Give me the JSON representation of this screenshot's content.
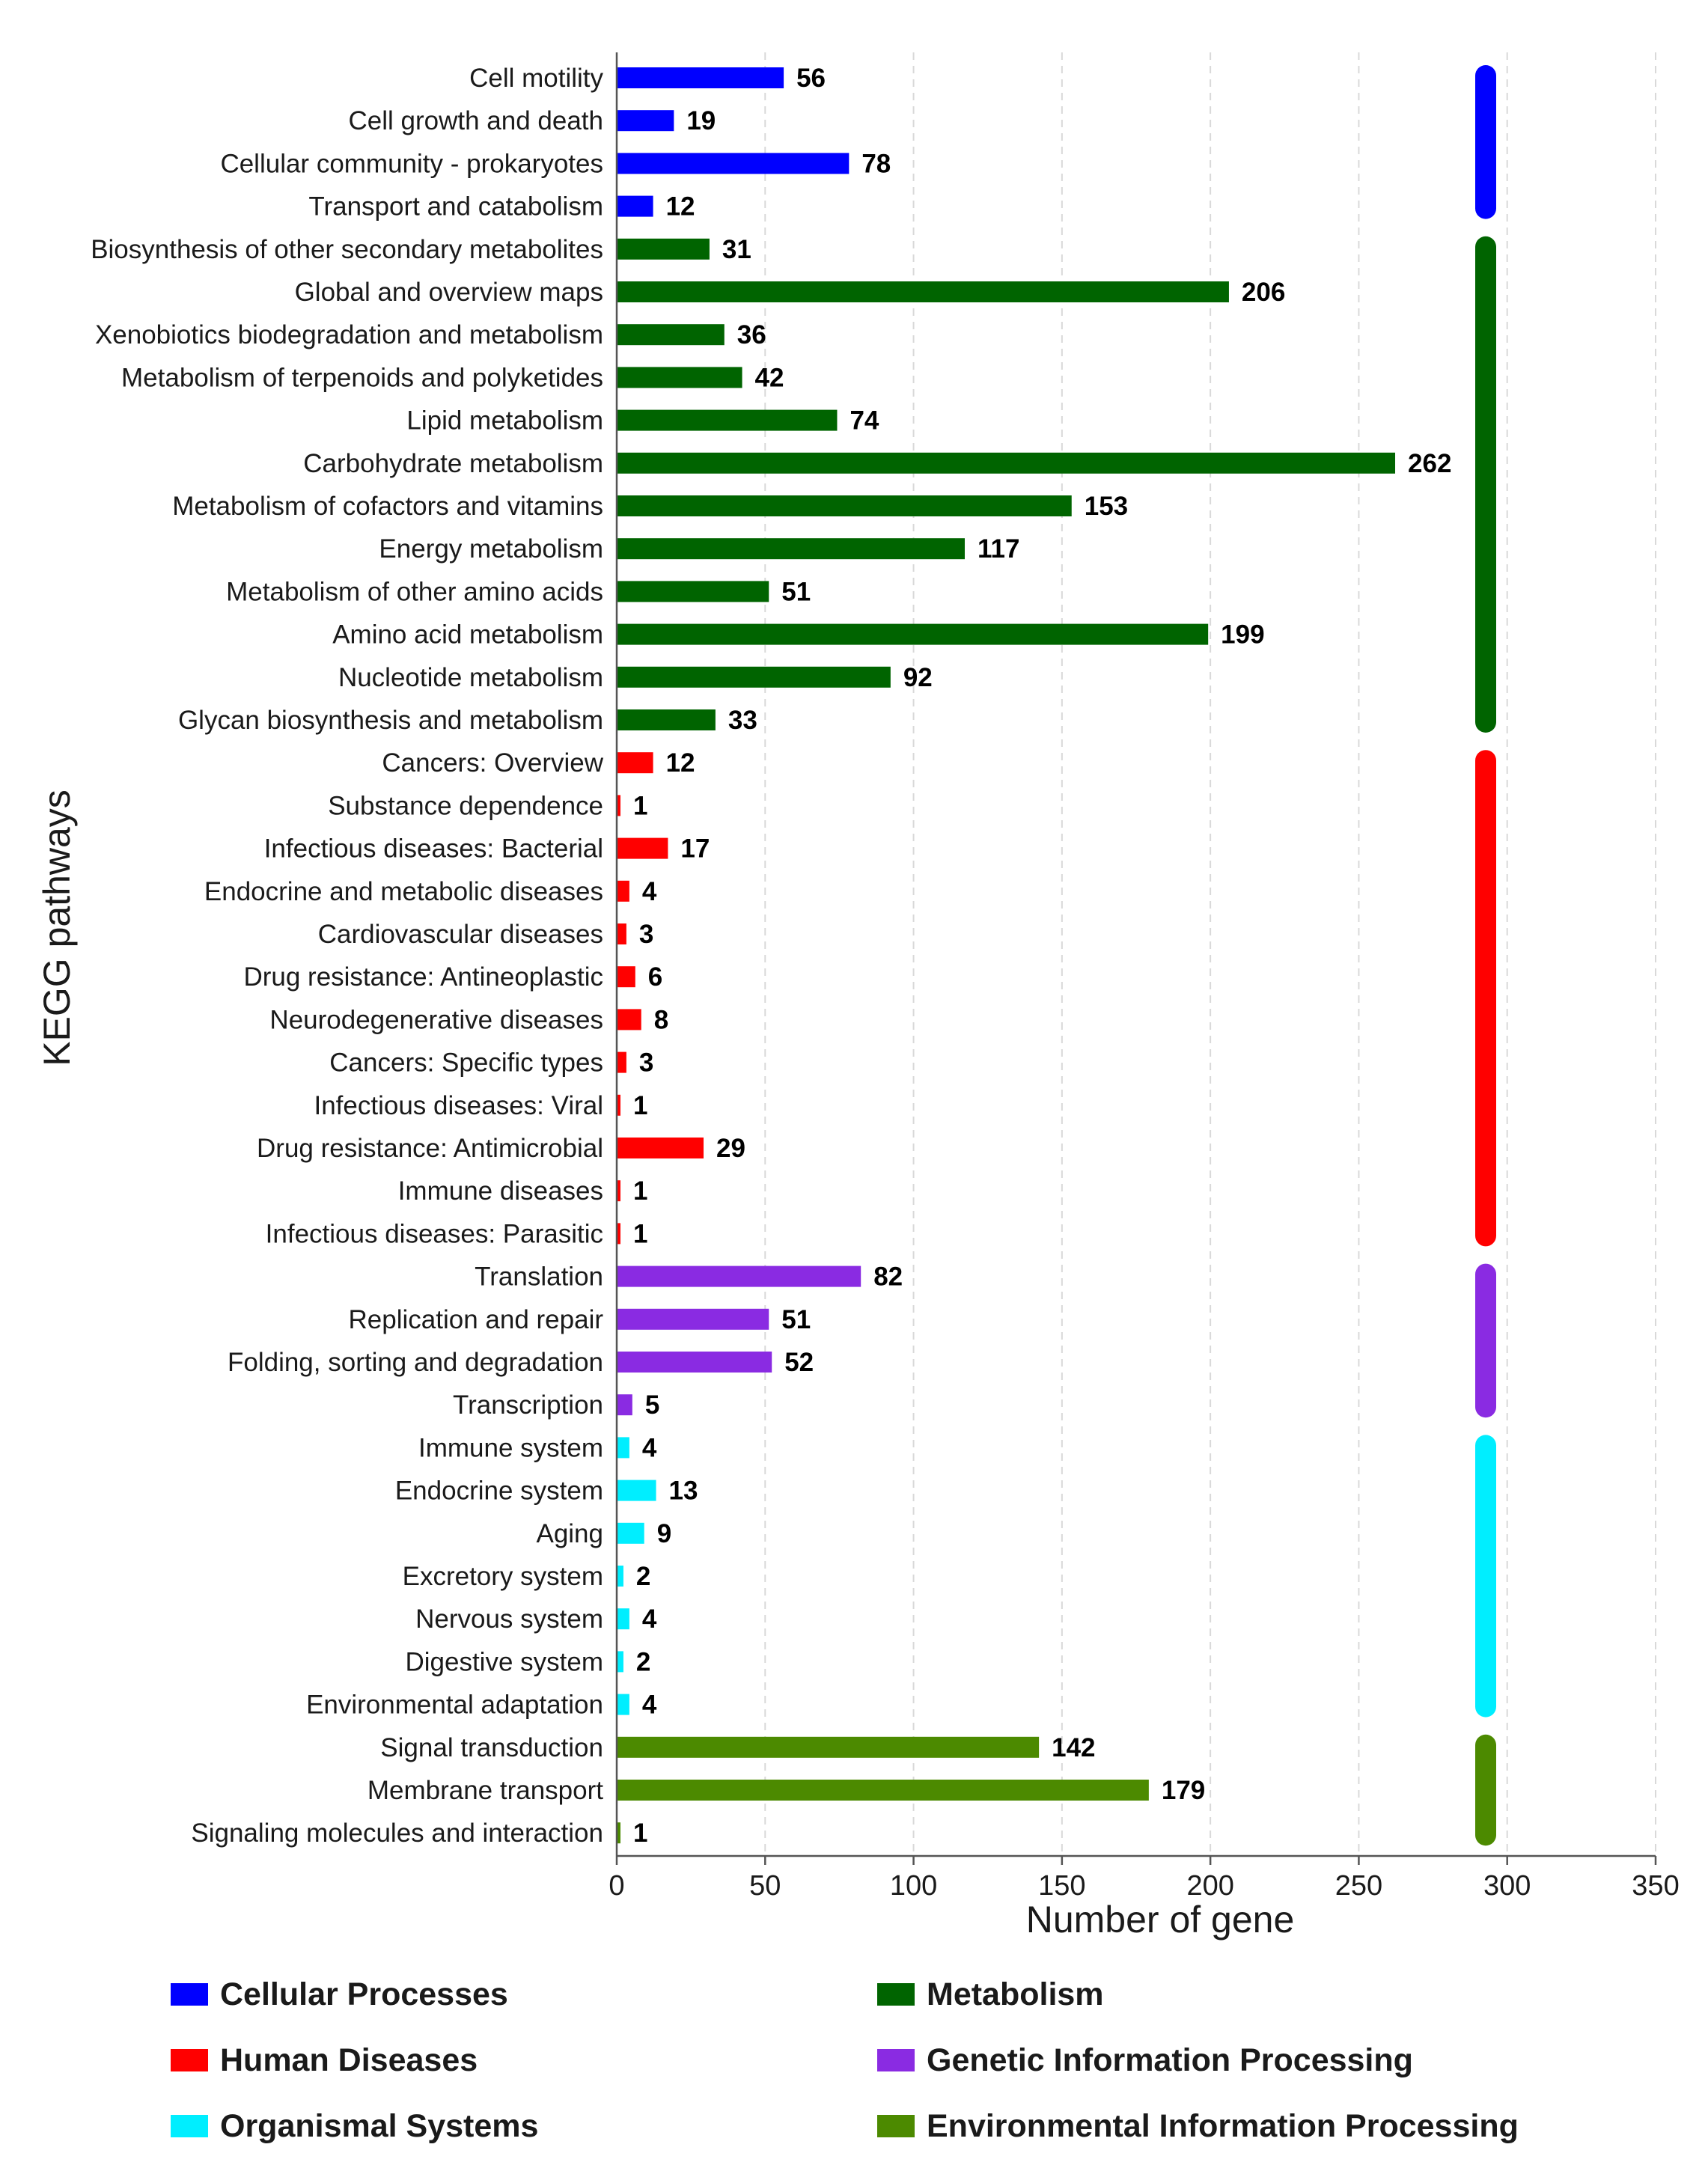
{
  "chart_data": {
    "type": "bar",
    "orientation": "horizontal",
    "xlabel": "Number of gene",
    "ylabel": "KEGG pathways",
    "xlim": [
      0,
      350
    ],
    "xticks": [
      0,
      50,
      100,
      150,
      200,
      250,
      300,
      350
    ],
    "grid": "vertical dashed",
    "groups": [
      {
        "name": "Cellular Processes",
        "color": "#0000FF"
      },
      {
        "name": "Metabolism",
        "color": "#006400"
      },
      {
        "name": "Human Diseases",
        "color": "#FF0000"
      },
      {
        "name": "Genetic Information Processing",
        "color": "#8A2BE2"
      },
      {
        "name": "Organismal Systems",
        "color": "#00EEFF"
      },
      {
        "name": "Environmental Information Processing",
        "color": "#4C8A00"
      }
    ],
    "categories": [
      {
        "label": "Cell motility",
        "value": 56,
        "group": 0
      },
      {
        "label": "Cell growth and death",
        "value": 19,
        "group": 0
      },
      {
        "label": "Cellular community - prokaryotes",
        "value": 78,
        "group": 0
      },
      {
        "label": "Transport and catabolism",
        "value": 12,
        "group": 0
      },
      {
        "label": "Biosynthesis of other secondary metabolites",
        "value": 31,
        "group": 1
      },
      {
        "label": "Global and overview maps",
        "value": 206,
        "group": 1
      },
      {
        "label": "Xenobiotics biodegradation and metabolism",
        "value": 36,
        "group": 1
      },
      {
        "label": "Metabolism of terpenoids and polyketides",
        "value": 42,
        "group": 1
      },
      {
        "label": "Lipid metabolism",
        "value": 74,
        "group": 1
      },
      {
        "label": "Carbohydrate metabolism",
        "value": 262,
        "group": 1
      },
      {
        "label": "Metabolism of cofactors and vitamins",
        "value": 153,
        "group": 1
      },
      {
        "label": "Energy metabolism",
        "value": 117,
        "group": 1
      },
      {
        "label": "Metabolism of other amino acids",
        "value": 51,
        "group": 1
      },
      {
        "label": "Amino acid metabolism",
        "value": 199,
        "group": 1
      },
      {
        "label": "Nucleotide metabolism",
        "value": 92,
        "group": 1
      },
      {
        "label": "Glycan biosynthesis and metabolism",
        "value": 33,
        "group": 1
      },
      {
        "label": "Cancers: Overview",
        "value": 12,
        "group": 2
      },
      {
        "label": "Substance dependence",
        "value": 1,
        "group": 2
      },
      {
        "label": "Infectious diseases: Bacterial",
        "value": 17,
        "group": 2
      },
      {
        "label": "Endocrine and metabolic diseases",
        "value": 4,
        "group": 2
      },
      {
        "label": "Cardiovascular diseases",
        "value": 3,
        "group": 2
      },
      {
        "label": "Drug resistance: Antineoplastic",
        "value": 6,
        "group": 2
      },
      {
        "label": "Neurodegenerative diseases",
        "value": 8,
        "group": 2
      },
      {
        "label": "Cancers: Specific types",
        "value": 3,
        "group": 2
      },
      {
        "label": "Infectious diseases: Viral",
        "value": 1,
        "group": 2
      },
      {
        "label": "Drug resistance: Antimicrobial",
        "value": 29,
        "group": 2
      },
      {
        "label": "Immune diseases",
        "value": 1,
        "group": 2
      },
      {
        "label": "Infectious diseases: Parasitic",
        "value": 1,
        "group": 2
      },
      {
        "label": "Translation",
        "value": 82,
        "group": 3
      },
      {
        "label": "Replication and repair",
        "value": 51,
        "group": 3
      },
      {
        "label": "Folding, sorting and degradation",
        "value": 52,
        "group": 3
      },
      {
        "label": "Transcription",
        "value": 5,
        "group": 3
      },
      {
        "label": "Immune system",
        "value": 4,
        "group": 4
      },
      {
        "label": "Endocrine system",
        "value": 13,
        "group": 4
      },
      {
        "label": "Aging",
        "value": 9,
        "group": 4
      },
      {
        "label": "Excretory system",
        "value": 2,
        "group": 4
      },
      {
        "label": "Nervous system",
        "value": 4,
        "group": 4
      },
      {
        "label": "Digestive system",
        "value": 2,
        "group": 4
      },
      {
        "label": "Environmental adaptation",
        "value": 4,
        "group": 4
      },
      {
        "label": "Signal transduction",
        "value": 142,
        "group": 5
      },
      {
        "label": "Membrane transport",
        "value": 179,
        "group": 5
      },
      {
        "label": "Signaling molecules and interaction",
        "value": 1,
        "group": 5
      }
    ],
    "legend": {
      "placement": "bottom",
      "order": [
        0,
        1,
        2,
        3,
        4,
        5
      ]
    }
  }
}
